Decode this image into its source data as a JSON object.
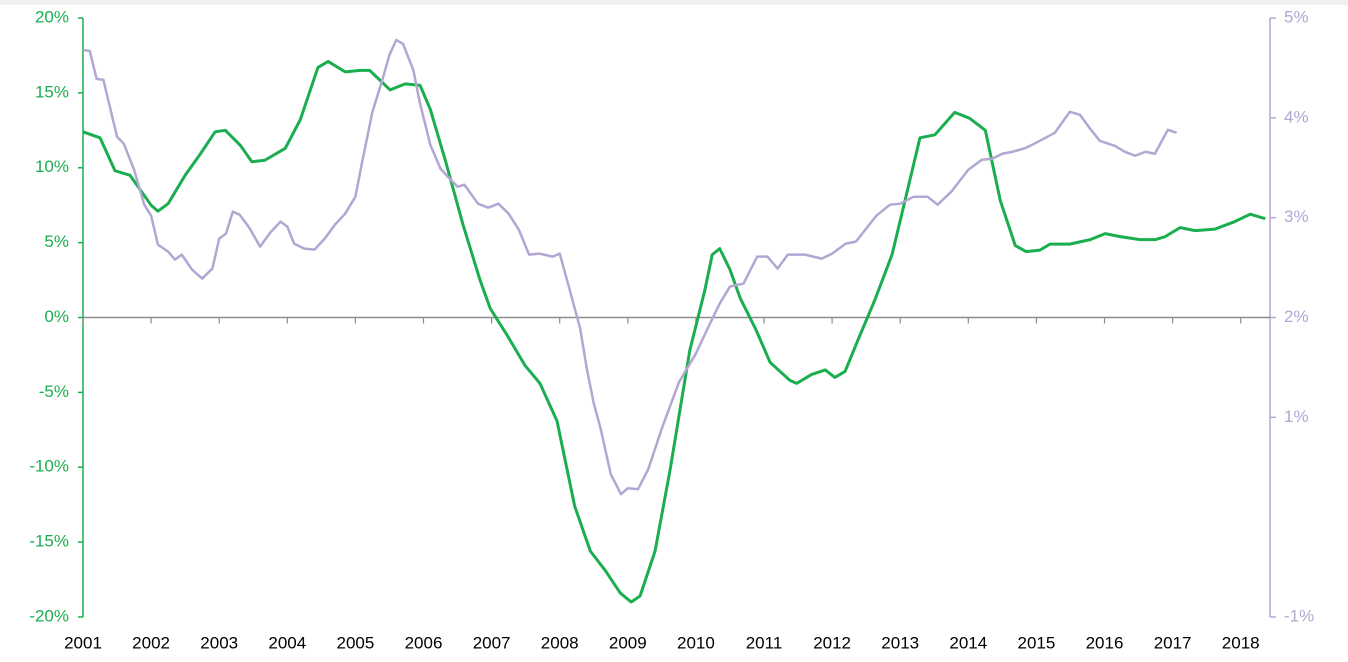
{
  "chart_data": {
    "type": "line",
    "xlim": [
      2001,
      2018.43
    ],
    "xticks": [
      2001,
      2002,
      2003,
      2004,
      2005,
      2006,
      2007,
      2008,
      2009,
      2010,
      2011,
      2012,
      2013,
      2014,
      2015,
      2016,
      2017,
      2018
    ],
    "ylim": [
      -20,
      20
    ],
    "yticks": [
      {
        "value": 20,
        "label": "20%"
      },
      {
        "value": 15,
        "label": "15%"
      },
      {
        "value": 10,
        "label": "10%"
      },
      {
        "value": 5,
        "label": "5%"
      },
      {
        "value": 0,
        "label": "0%"
      },
      {
        "value": -5,
        "label": "-5%"
      },
      {
        "value": -10,
        "label": "-10%"
      },
      {
        "value": -15,
        "label": "-15%"
      },
      {
        "value": -20,
        "label": "-20%"
      }
    ],
    "y2lim": [
      -1,
      5
    ],
    "y2ticks": [
      {
        "value": 5,
        "label": "5%"
      },
      {
        "value": 4,
        "label": "4%"
      },
      {
        "value": 3,
        "label": "3%"
      },
      {
        "value": 2,
        "label": "2%"
      },
      {
        "value": 1,
        "label": "1%"
      },
      {
        "value": -1,
        "label": "-1%"
      }
    ],
    "ycolor": "#1aae4f",
    "y2color": "#b3a6d3",
    "series": [
      {
        "color": "#1aae4f",
        "x": [
          2001.0,
          2001.25,
          2001.47,
          2001.69,
          2002.0,
          2002.1,
          2002.25,
          2002.5,
          2002.72,
          2002.94,
          2003.09,
          2003.31,
          2003.48,
          2003.67,
          2003.97,
          2004.19,
          2004.45,
          2004.6,
          2004.85,
          2005.07,
          2005.21,
          2005.51,
          2005.73,
          2005.95,
          2006.1,
          2006.32,
          2006.58,
          2006.83,
          2006.98,
          2007.23,
          2007.49,
          2007.71,
          2007.96,
          2008.22,
          2008.45,
          2008.67,
          2008.89,
          2009.05,
          2009.18,
          2009.4,
          2009.62,
          2009.91,
          2010.13,
          2010.24,
          2010.35,
          2010.5,
          2010.65,
          2010.88,
          2011.09,
          2011.38,
          2011.48,
          2011.7,
          2011.9,
          2012.04,
          2012.19,
          2012.38,
          2012.63,
          2012.88,
          2013.07,
          2013.29,
          2013.51,
          2013.8,
          2014.02,
          2014.25,
          2014.47,
          2014.69,
          2014.85,
          2015.05,
          2015.2,
          2015.49,
          2015.79,
          2016.01,
          2016.23,
          2016.52,
          2016.74,
          2016.89,
          2017.11,
          2017.33,
          2017.62,
          2017.91,
          2018.14,
          2018.36
        ],
        "values": [
          12.4,
          12.0,
          9.8,
          9.5,
          7.5,
          7.1,
          7.6,
          9.5,
          10.9,
          12.4,
          12.5,
          11.5,
          10.4,
          10.5,
          11.3,
          13.2,
          16.7,
          17.1,
          16.4,
          16.5,
          16.5,
          15.2,
          15.6,
          15.5,
          13.9,
          10.5,
          6.2,
          2.5,
          0.6,
          -1.2,
          -3.2,
          -4.4,
          -6.9,
          -12.6,
          -15.6,
          -16.9,
          -18.4,
          -19.0,
          -18.6,
          -15.6,
          -10.2,
          -2.2,
          1.8,
          4.2,
          4.6,
          3.2,
          1.3,
          -0.8,
          -3.0,
          -4.2,
          -4.4,
          -3.8,
          -3.5,
          -4.0,
          -3.6,
          -1.5,
          1.2,
          4.2,
          7.8,
          12.0,
          12.2,
          13.7,
          13.3,
          12.5,
          7.8,
          4.8,
          4.4,
          4.5,
          4.9,
          4.9,
          5.2,
          5.6,
          5.4,
          5.2,
          5.2,
          5.4,
          6.0,
          5.8,
          5.9,
          6.4,
          6.9,
          6.6
        ]
      },
      {
        "color": "#b3a6d3",
        "axis": "y2",
        "x": [
          2001.0,
          2001.1,
          2001.2,
          2001.3,
          2001.5,
          2001.6,
          2001.75,
          2001.9,
          2002.0,
          2002.1,
          2002.25,
          2002.35,
          2002.45,
          2002.6,
          2002.75,
          2002.9,
          2003.0,
          2003.1,
          2003.2,
          2003.3,
          2003.45,
          2003.6,
          2003.75,
          2003.9,
          2004.0,
          2004.1,
          2004.25,
          2004.4,
          2004.55,
          2004.7,
          2004.85,
          2005.0,
          2005.1,
          2005.25,
          2005.4,
          2005.5,
          2005.6,
          2005.7,
          2005.85,
          2005.95,
          2006.1,
          2006.25,
          2006.4,
          2006.5,
          2006.6,
          2006.8,
          2006.95,
          2007.1,
          2007.25,
          2007.4,
          2007.55,
          2007.7,
          2007.9,
          2008.0,
          2008.15,
          2008.3,
          2008.4,
          2008.5,
          2008.6,
          2008.75,
          2008.9,
          2009.0,
          2009.15,
          2009.3,
          2009.5,
          2009.75,
          2010.0,
          2010.2,
          2010.35,
          2010.5,
          2010.7,
          2010.9,
          2011.05,
          2011.2,
          2011.35,
          2011.6,
          2011.85,
          2012.0,
          2012.2,
          2012.35,
          2012.5,
          2012.65,
          2012.85,
          2013.0,
          2013.2,
          2013.4,
          2013.55,
          2013.75,
          2014.0,
          2014.2,
          2014.35,
          2014.5,
          2014.65,
          2014.85,
          2015.05,
          2015.27,
          2015.49,
          2015.64,
          2015.79,
          2015.93,
          2016.15,
          2016.3,
          2016.45,
          2016.6,
          2016.74,
          2016.93,
          2017.06
        ],
        "values": [
          4.68,
          4.67,
          4.39,
          4.38,
          3.81,
          3.74,
          3.48,
          3.13,
          3.02,
          2.73,
          2.66,
          2.58,
          2.63,
          2.48,
          2.39,
          2.49,
          2.79,
          2.84,
          3.06,
          3.03,
          2.89,
          2.71,
          2.85,
          2.96,
          2.91,
          2.74,
          2.69,
          2.68,
          2.79,
          2.93,
          3.04,
          3.21,
          3.56,
          4.06,
          4.39,
          4.63,
          4.78,
          4.74,
          4.48,
          4.14,
          3.73,
          3.49,
          3.38,
          3.31,
          3.33,
          3.14,
          3.1,
          3.14,
          3.04,
          2.88,
          2.63,
          2.64,
          2.61,
          2.64,
          2.27,
          1.89,
          1.48,
          1.14,
          0.89,
          0.43,
          0.23,
          0.29,
          0.28,
          0.48,
          0.89,
          1.35,
          1.64,
          1.93,
          2.14,
          2.31,
          2.34,
          2.61,
          2.61,
          2.49,
          2.63,
          2.63,
          2.59,
          2.64,
          2.74,
          2.76,
          2.89,
          3.02,
          3.13,
          3.14,
          3.21,
          3.21,
          3.13,
          3.26,
          3.48,
          3.58,
          3.59,
          3.64,
          3.66,
          3.7,
          3.77,
          3.85,
          4.06,
          4.03,
          3.89,
          3.77,
          3.72,
          3.66,
          3.62,
          3.66,
          3.64,
          3.88,
          3.85
        ]
      }
    ]
  }
}
